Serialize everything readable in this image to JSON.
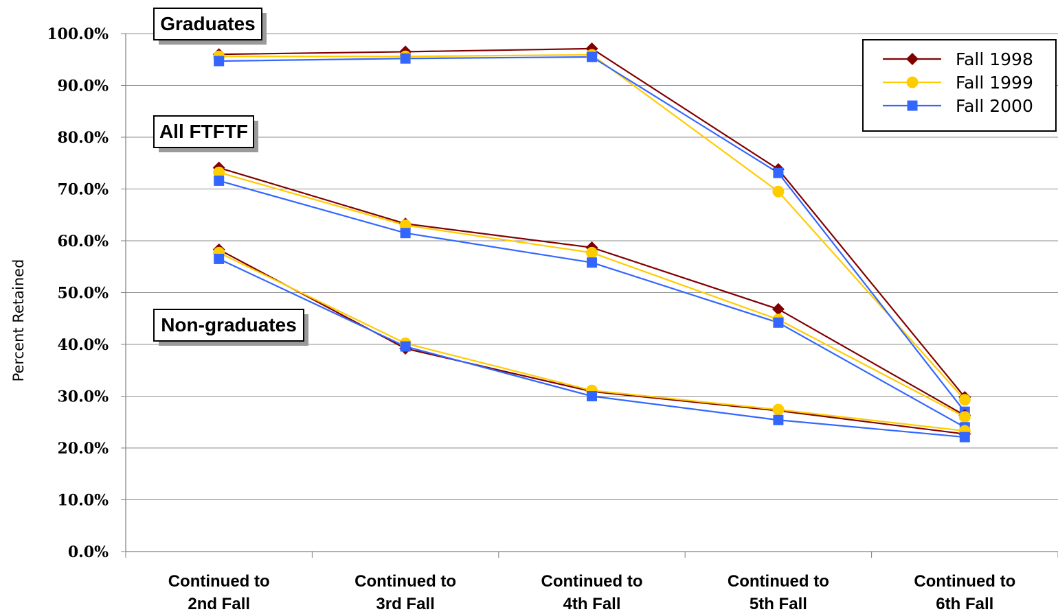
{
  "chart_data": {
    "type": "line",
    "title": "",
    "xlabel": "",
    "ylabel": "Percent Retained",
    "ylim": [
      0,
      100
    ],
    "ytick_step": 10,
    "ytick_format": "0.0%",
    "grid": "horizontal",
    "legend_placement": "top-right",
    "categories": [
      [
        "Continued to",
        "2nd Fall"
      ],
      [
        "Continued to",
        "3rd Fall"
      ],
      [
        "Continued to",
        "4th Fall"
      ],
      [
        "Continued to",
        "5th Fall"
      ],
      [
        "Continued to",
        "6th Fall"
      ]
    ],
    "legend": [
      {
        "name": "Fall 1998",
        "color": "#800000",
        "marker": "diamond"
      },
      {
        "name": "Fall 1999",
        "color": "#FFCC00",
        "marker": "circle"
      },
      {
        "name": "Fall 2000",
        "color": "#3366FF",
        "marker": "square"
      }
    ],
    "groups": [
      {
        "label": "Graduates",
        "series": [
          {
            "name": "Fall 1998",
            "values": [
              96.0,
              96.5,
              97.1,
              73.8,
              29.8
            ]
          },
          {
            "name": "Fall 1999",
            "values": [
              95.6,
              95.6,
              95.9,
              69.5,
              29.3
            ]
          },
          {
            "name": "Fall 2000",
            "values": [
              94.7,
              95.2,
              95.5,
              73.1,
              27.0
            ]
          }
        ]
      },
      {
        "label": "All FTFTF",
        "series": [
          {
            "name": "Fall 1998",
            "values": [
              74.1,
              63.3,
              58.7,
              46.8,
              26.3
            ]
          },
          {
            "name": "Fall 1999",
            "values": [
              73.2,
              63.0,
              57.7,
              44.8,
              26.0
            ]
          },
          {
            "name": "Fall 2000",
            "values": [
              71.6,
              61.5,
              55.8,
              44.2,
              24.0
            ]
          }
        ]
      },
      {
        "label": "Non-graduates",
        "series": [
          {
            "name": "Fall 1998",
            "values": [
              58.3,
              39.2,
              30.9,
              27.2,
              22.7
            ]
          },
          {
            "name": "Fall 1999",
            "values": [
              57.7,
              40.2,
              31.1,
              27.4,
              23.3
            ]
          },
          {
            "name": "Fall 2000",
            "values": [
              56.5,
              39.6,
              30.0,
              25.4,
              22.1
            ]
          }
        ]
      }
    ]
  }
}
